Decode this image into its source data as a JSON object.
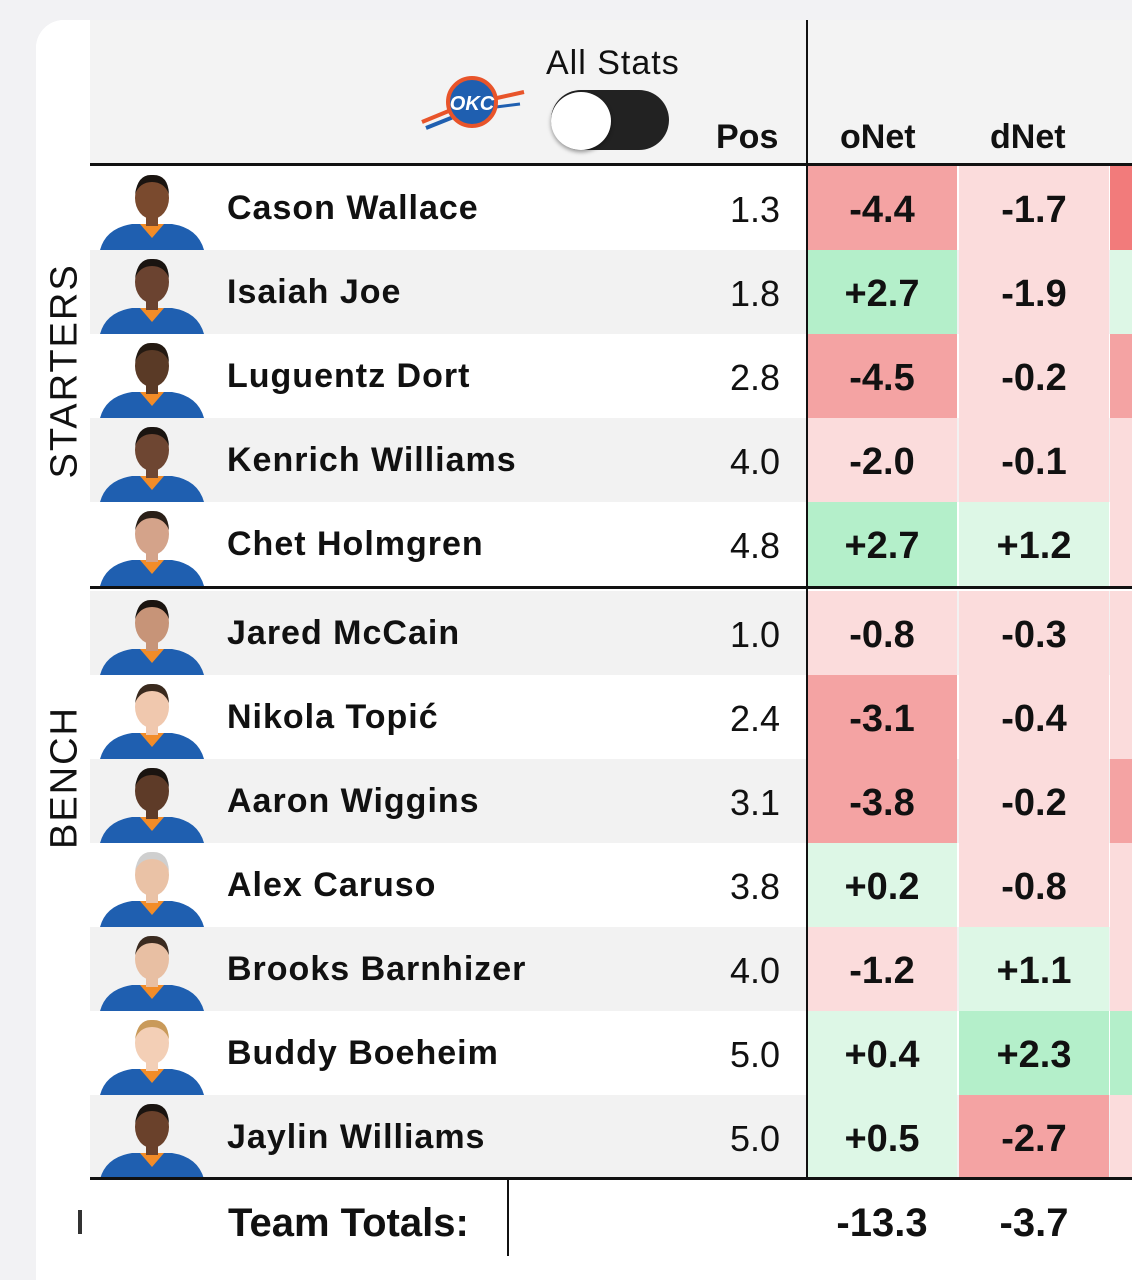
{
  "header": {
    "toggle_label": "All Stats",
    "toggle_on": false,
    "col_pos": "Pos",
    "col_onet": "oNet",
    "col_dnet": "dNet",
    "team_logo_icon": "okc-logo-icon",
    "team_logo_text": "OKC"
  },
  "sections": {
    "starters_label": "STARTERS",
    "bench_label": "BENCH"
  },
  "colors": {
    "strong_red": "#f4a3a3",
    "light_red": "#fbdcdc",
    "strong_green": "#b4efca",
    "light_green": "#ddf7e6",
    "jersey_blue": "#1f5fb0"
  },
  "players": [
    {
      "name": "Cason Wallace",
      "pos": "1.3",
      "onet": "-4.4",
      "dnet": "-1.7",
      "onet_tone": "strong_red",
      "dnet_tone": "light_red",
      "edge_tone": "#f27b7b",
      "group": "starters"
    },
    {
      "name": "Isaiah Joe",
      "pos": "1.8",
      "onet": "+2.7",
      "dnet": "-1.9",
      "onet_tone": "strong_green",
      "dnet_tone": "light_red",
      "edge_tone": "#ddf7e6",
      "group": "starters"
    },
    {
      "name": "Luguentz Dort",
      "pos": "2.8",
      "onet": "-4.5",
      "dnet": "-0.2",
      "onet_tone": "strong_red",
      "dnet_tone": "light_red",
      "edge_tone": "#f4a3a3",
      "group": "starters"
    },
    {
      "name": "Kenrich Williams",
      "pos": "4.0",
      "onet": "-2.0",
      "dnet": "-0.1",
      "onet_tone": "light_red",
      "dnet_tone": "light_red",
      "edge_tone": "#fbdcdc",
      "group": "starters"
    },
    {
      "name": "Chet Holmgren",
      "pos": "4.8",
      "onet": "+2.7",
      "dnet": "+1.2",
      "onet_tone": "strong_green",
      "dnet_tone": "light_green",
      "edge_tone": "#fbdcdc",
      "group": "starters"
    },
    {
      "name": "Jared McCain",
      "pos": "1.0",
      "onet": "-0.8",
      "dnet": "-0.3",
      "onet_tone": "light_red",
      "dnet_tone": "light_red",
      "edge_tone": "#fbdcdc",
      "group": "bench"
    },
    {
      "name": "Nikola Topić",
      "pos": "2.4",
      "onet": "-3.1",
      "dnet": "-0.4",
      "onet_tone": "strong_red",
      "dnet_tone": "light_red",
      "edge_tone": "#fbdcdc",
      "group": "bench"
    },
    {
      "name": "Aaron Wiggins",
      "pos": "3.1",
      "onet": "-3.8",
      "dnet": "-0.2",
      "onet_tone": "strong_red",
      "dnet_tone": "light_red",
      "edge_tone": "#f4a3a3",
      "group": "bench"
    },
    {
      "name": "Alex Caruso",
      "pos": "3.8",
      "onet": "+0.2",
      "dnet": "-0.8",
      "onet_tone": "light_green",
      "dnet_tone": "light_red",
      "edge_tone": "#fbdcdc",
      "group": "bench"
    },
    {
      "name": "Brooks Barnhizer",
      "pos": "4.0",
      "onet": "-1.2",
      "dnet": "+1.1",
      "onet_tone": "light_red",
      "dnet_tone": "light_green",
      "edge_tone": "#fbdcdc",
      "group": "bench"
    },
    {
      "name": "Buddy Boeheim",
      "pos": "5.0",
      "onet": "+0.4",
      "dnet": "+2.3",
      "onet_tone": "light_green",
      "dnet_tone": "strong_green",
      "edge_tone": "#b4efca",
      "group": "bench"
    },
    {
      "name": "Jaylin Williams",
      "pos": "5.0",
      "onet": "+0.5",
      "dnet": "-2.7",
      "onet_tone": "light_green",
      "dnet_tone": "strong_red",
      "edge_tone": "#fbdcdc",
      "group": "bench"
    }
  ],
  "totals": {
    "label": "Team Totals:",
    "onet": "-13.3",
    "dnet": "-3.7"
  }
}
